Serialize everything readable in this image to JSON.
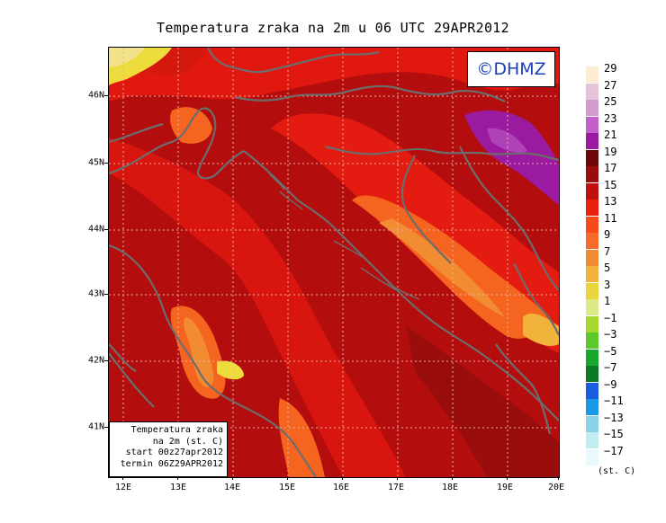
{
  "title": "Temperatura zraka na 2m u 06 UTC 29APR2012",
  "brand": "©DHMZ",
  "info_box": {
    "line1": "Temperatura zraka",
    "line2": "na 2m (st. C)",
    "line3": "start 00z27apr2012",
    "line4": "termin 06Z29APR2012"
  },
  "x_ticks": [
    "12E",
    "13E",
    "14E",
    "15E",
    "16E",
    "17E",
    "18E",
    "19E",
    "20E"
  ],
  "y_ticks": [
    "46N",
    "45N",
    "44N",
    "43N",
    "42N",
    "41N"
  ],
  "legend": {
    "labels": [
      "29",
      "27",
      "25",
      "23",
      "21",
      "19",
      "17",
      "15",
      "13",
      "11",
      "9",
      "7",
      "5",
      "3",
      "1",
      "−1",
      "−3",
      "−5",
      "−7",
      "−9",
      "−11",
      "−13",
      "−15",
      "−17"
    ],
    "colors": [
      "#fdebd2",
      "#e6c3d9",
      "#d39ad0",
      "#c060c8",
      "#9a1aa0",
      "#6e0808",
      "#9a0d0d",
      "#c00f0f",
      "#ec1e0e",
      "#f6491c",
      "#f66b2a",
      "#f28c33",
      "#f2b33c",
      "#e8d63c",
      "#dde886",
      "#a8d830",
      "#5cc82e",
      "#18a82e",
      "#0b7a24",
      "#1a5cde",
      "#1a9ae6",
      "#8ad2e8",
      "#c3ecf0",
      "#eafafc"
    ],
    "units": "(st. C)"
  }
}
